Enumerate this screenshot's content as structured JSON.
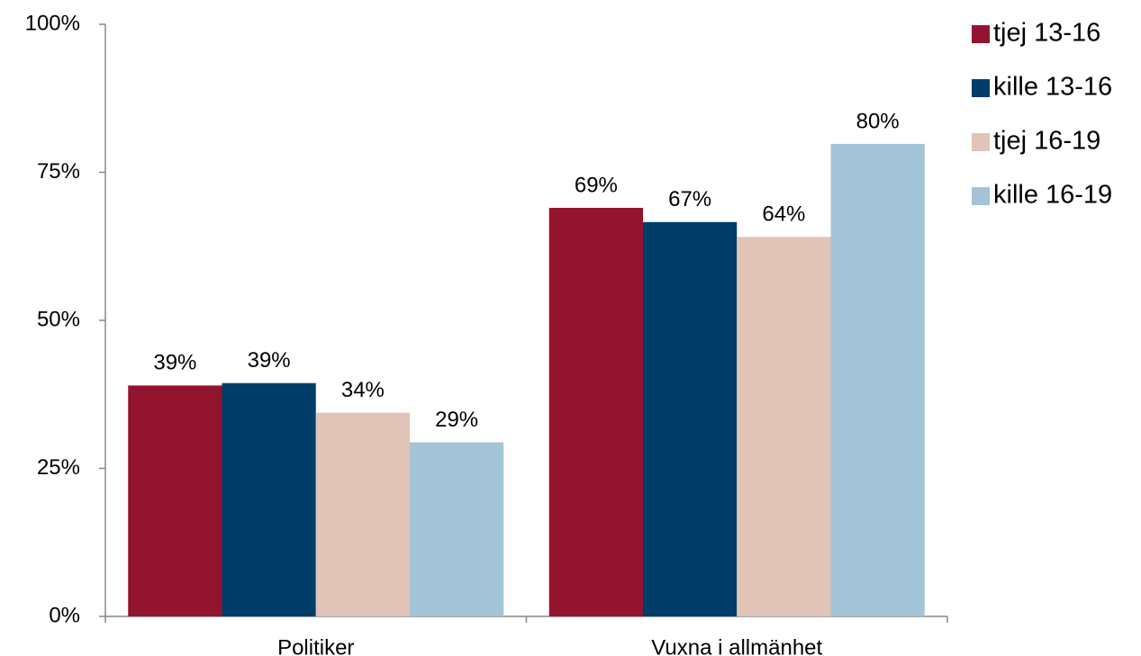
{
  "chart_data": {
    "type": "bar",
    "categories": [
      "Politiker",
      "Vuxna i allmänhet"
    ],
    "series": [
      {
        "name": "tjej 13-16",
        "color": "#93142e",
        "values": [
          39,
          69
        ],
        "value_labels": [
          "39%",
          "69%"
        ]
      },
      {
        "name": "kille 13-16",
        "color": "#003d68",
        "values": [
          39.4,
          66.6
        ],
        "value_labels": [
          "39%",
          "67%"
        ]
      },
      {
        "name": "tjej 16-19",
        "color": "#e1c3b7",
        "values": [
          34.4,
          64.1
        ],
        "value_labels": [
          "34%",
          "64%"
        ]
      },
      {
        "name": "kille 16-19",
        "color": "#a3c4d7",
        "values": [
          29.4,
          79.8
        ],
        "value_labels": [
          "29%",
          "80%"
        ]
      }
    ],
    "ylim": [
      0,
      100
    ],
    "yticks": [
      {
        "value": 0,
        "label": "0%"
      },
      {
        "value": 25,
        "label": "25%"
      },
      {
        "value": 50,
        "label": "50%"
      },
      {
        "value": 75,
        "label": "75%"
      },
      {
        "value": 100,
        "label": "100%"
      }
    ],
    "grid": false,
    "legend": "right"
  }
}
